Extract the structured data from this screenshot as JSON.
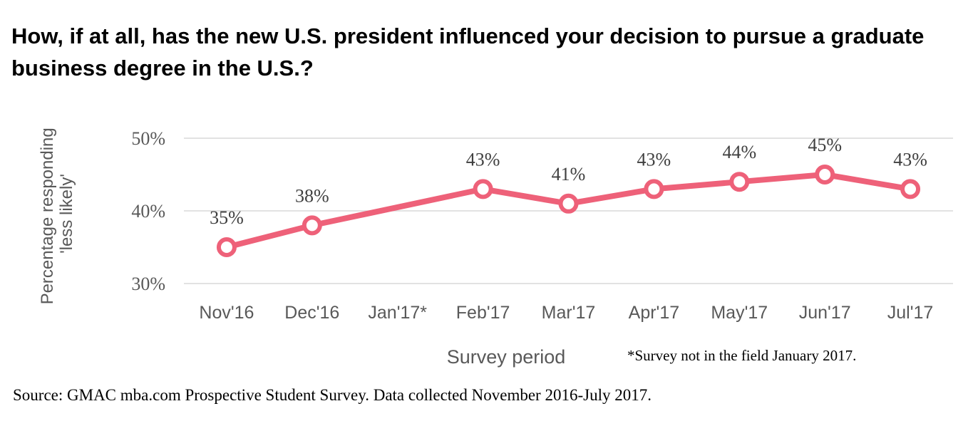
{
  "chart_data": {
    "type": "line",
    "title": "How, if at all, has the new U.S. president influenced your decision to pursue a graduate business degree in the U.S.?",
    "xlabel": "Survey period",
    "ylabel_lines": [
      "Percentage responding",
      "'less likely'"
    ],
    "categories": [
      "Nov'16",
      "Dec'16",
      "Jan'17*",
      "Feb'17",
      "Mar'17",
      "Apr'17",
      "May'17",
      "Jun'17",
      "Jul'17"
    ],
    "series": [
      {
        "name": "less likely",
        "values": [
          35,
          38,
          null,
          43,
          41,
          43,
          44,
          45,
          43
        ],
        "labels": [
          "35%",
          "38%",
          "",
          "43%",
          "41%",
          "43%",
          "44%",
          "45%",
          "43%"
        ]
      }
    ],
    "ylim": [
      30,
      50
    ],
    "yticks": [
      30,
      40,
      50
    ],
    "ytick_labels": [
      "30%",
      "40%",
      "50%"
    ],
    "grid": true,
    "footnote": "*Survey not in the field January 2017.",
    "source": "Source: GMAC mba.com Prospective Student Survey. Data collected November 2016-July 2017.",
    "colors": {
      "line": "#ee6179",
      "grid": "#d9d9d9",
      "text": "#595959"
    }
  }
}
